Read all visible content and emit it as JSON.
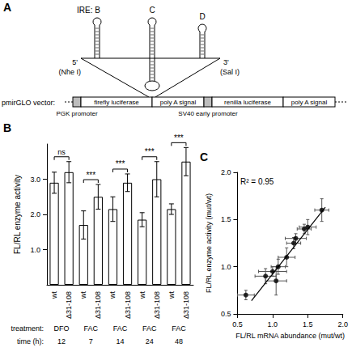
{
  "diagram": {
    "panel": "A",
    "hairpins": [
      "IRE: B",
      "C",
      "D"
    ],
    "five_prime": {
      "label": "5'",
      "site": "(Nhe I)"
    },
    "three_prime": {
      "label": "3'",
      "site": "(Sal I)"
    },
    "vector": {
      "title": "pmirGLO vector:",
      "promoters": [
        "PGK promoter",
        "SV40 early promoter"
      ],
      "segments": [
        "firefly luciferase",
        "poly A signal",
        "renilla luciferase",
        "poly A signal"
      ]
    }
  },
  "chart_data": [
    {
      "panel": "B",
      "type": "bar",
      "categories": [
        "wt",
        "Δ31-108",
        "wt",
        "Δ31-108",
        "wt",
        "Δ31-108",
        "wt",
        "Δ31-108",
        "wt",
        "Δ31-108"
      ],
      "values": [
        2.9,
        3.2,
        1.7,
        2.5,
        2.15,
        2.9,
        1.85,
        3.0,
        2.15,
        3.5
      ],
      "errors": [
        0.3,
        0.3,
        0.4,
        0.35,
        0.35,
        0.25,
        0.2,
        0.5,
        0.15,
        0.4
      ],
      "color": "#ffffff",
      "ylabel": "FL/RL enzyme activity",
      "ylim": [
        0,
        4
      ],
      "yticks": [
        {
          "value": 1,
          "label": "1.0"
        },
        {
          "value": 2,
          "label": "2.0"
        },
        {
          "value": 3,
          "label": "3.0"
        }
      ],
      "grid": false,
      "significance": [
        "ns",
        "***",
        "***",
        "***",
        "***"
      ],
      "treatment": {
        "title": "treatment:",
        "values": [
          "DFO",
          "FAC",
          "FAC",
          "FAC",
          "FAC"
        ]
      },
      "time": {
        "title": "time (h):",
        "values": [
          12,
          7,
          14,
          24,
          48
        ]
      }
    },
    {
      "panel": "C",
      "type": "scatter",
      "x": [
        0.62,
        0.9,
        1.0,
        1.05,
        1.08,
        1.2,
        1.3,
        1.33,
        1.45,
        1.5,
        1.7
      ],
      "values": [
        0.7,
        0.9,
        0.95,
        0.85,
        1.0,
        1.1,
        1.25,
        1.3,
        1.4,
        1.42,
        1.6
      ],
      "xerr": [
        0.12,
        0.15,
        0.2,
        0.15,
        0.1,
        0.12,
        0.1,
        0.15,
        0.1,
        0.12,
        0.1
      ],
      "yerr": [
        0.05,
        0.08,
        0.05,
        0.15,
        0.08,
        0.1,
        0.06,
        0.05,
        0.05,
        0.08,
        0.12
      ],
      "fit": {
        "x": [
          0.7,
          1.75
        ],
        "values": [
          0.64,
          1.63
        ]
      },
      "annotation": "R² = 0.95",
      "xlabel": "FL/RL mRNA abundance (mut/wt)",
      "ylabel": "FL/RL enzyme activity (mut/wt)",
      "xlim": [
        0.5,
        2.0
      ],
      "ylim": [
        0.5,
        2.0
      ],
      "xticks": [
        0.5,
        {
          "value": 1,
          "label": "1.0"
        },
        1.5,
        {
          "value": 2,
          "label": "2.0"
        }
      ],
      "yticks": [
        0.5,
        {
          "value": 1,
          "label": "1.0"
        },
        1.5,
        {
          "value": 2,
          "label": "2.0"
        }
      ],
      "color": "#000000",
      "marker": "circle",
      "grid": false
    }
  ]
}
